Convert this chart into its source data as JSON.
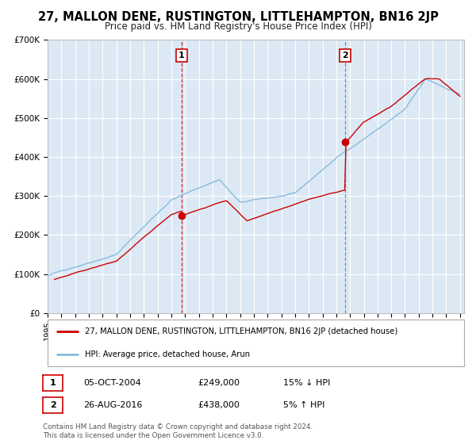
{
  "title": "27, MALLON DENE, RUSTINGTON, LITTLEHAMPTON, BN16 2JP",
  "subtitle": "Price paid vs. HM Land Registry's House Price Index (HPI)",
  "title_fontsize": 10.5,
  "subtitle_fontsize": 8.5,
  "bg_color": "#ffffff",
  "plot_bg_color": "#dce9f5",
  "grid_color": "#ffffff",
  "red_color": "#cc0000",
  "blue_color": "#88bbdd",
  "sale1_year": 2004.75,
  "sale1_price": 249000,
  "sale2_year": 2016.65,
  "sale2_price": 438000,
  "legend_line1": "27, MALLON DENE, RUSTINGTON, LITTLEHAMPTON, BN16 2JP (detached house)",
  "legend_line2": "HPI: Average price, detached house, Arun",
  "table_row1": [
    "1",
    "05-OCT-2004",
    "£249,000",
    "15% ↓ HPI"
  ],
  "table_row2": [
    "2",
    "26-AUG-2016",
    "£438,000",
    "5% ↑ HPI"
  ],
  "footnote1": "Contains HM Land Registry data © Crown copyright and database right 2024.",
  "footnote2": "This data is licensed under the Open Government Licence v3.0.",
  "ylim": [
    0,
    700000
  ],
  "xlim_start": 1995.0,
  "xlim_end": 2025.3
}
